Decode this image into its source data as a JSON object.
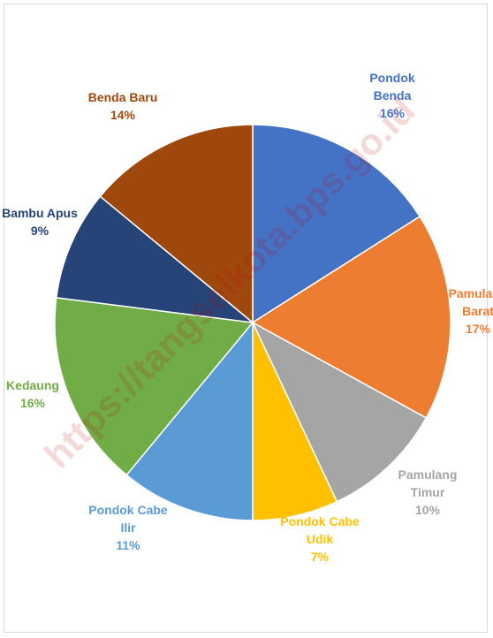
{
  "chart_data": {
    "type": "pie",
    "title": "",
    "unit": "%",
    "slices": [
      {
        "label": "Pondok Benda",
        "label_lines": [
          "Pondok",
          "Benda"
        ],
        "value": 16,
        "color": "#4472C4"
      },
      {
        "label": "Pamulang Barat",
        "label_lines": [
          "Pamulang",
          "Barat"
        ],
        "value": 17,
        "color": "#ED7D31"
      },
      {
        "label": "Pamulang Timur",
        "label_lines": [
          "Pamulang",
          "Timur"
        ],
        "value": 10,
        "color": "#A5A5A5"
      },
      {
        "label": "Pondok Cabe Udik",
        "label_lines": [
          "Pondok Cabe",
          "Udik"
        ],
        "value": 7,
        "color": "#FFC000"
      },
      {
        "label": "Pondok Cabe Ilir",
        "label_lines": [
          "Pondok Cabe",
          "Ilir"
        ],
        "value": 11,
        "color": "#5B9BD5"
      },
      {
        "label": "Kedaung",
        "label_lines": [
          "Kedaung"
        ],
        "value": 16,
        "color": "#70AD47"
      },
      {
        "label": "Bambu Apus",
        "label_lines": [
          "Bambu Apus"
        ],
        "value": 9,
        "color": "#264478"
      },
      {
        "label": "Benda Baru",
        "label_lines": [
          "Benda Baru"
        ],
        "value": 14,
        "color": "#9E480E"
      }
    ],
    "legend": "none",
    "data_labels": "category and percentage"
  },
  "watermark": {
    "text": "https://tangselkota.bps.go.id",
    "color": "#c00000"
  }
}
